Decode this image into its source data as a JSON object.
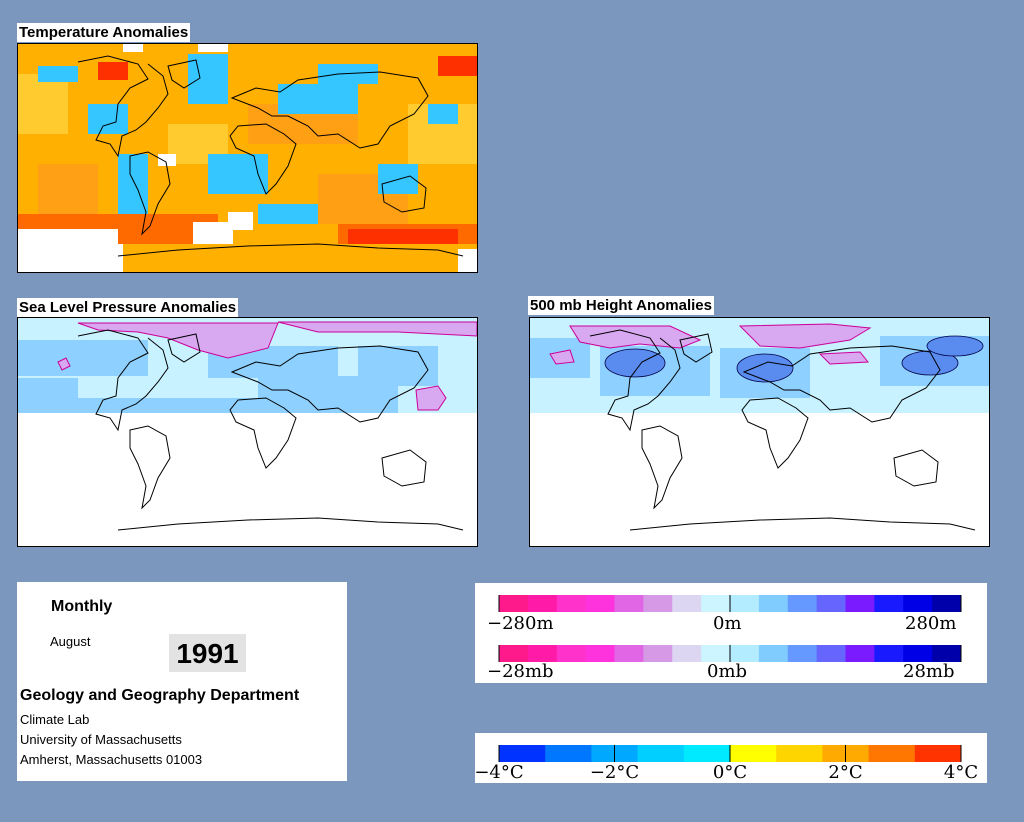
{
  "panels": {
    "temperature": {
      "title": "Temperature Anomalies"
    },
    "slp": {
      "title": "Sea Level Pressure Anomalies"
    },
    "height": {
      "title": "500 mb Height Anomalies"
    }
  },
  "info": {
    "mode": "Monthly",
    "month": "August",
    "year": "1991",
    "department": "Geology and Geography Department",
    "lab": "Climate Lab",
    "university": "University of Massachusetts",
    "address": "Amherst, Massachusetts 01003"
  },
  "legends": {
    "height": {
      "labels": [
        "−280m",
        "0m",
        "280m"
      ],
      "colors": [
        "#ff1a8c",
        "#ff1aa8",
        "#ff33cc",
        "#ff33dd",
        "#e066e6",
        "#d699e6",
        "#dcd6f2",
        "#cdf5ff",
        "#b3ecff",
        "#80ccff",
        "#6699ff",
        "#6666ff",
        "#7a1aff",
        "#1a1aff",
        "#0000e6",
        "#0000aa"
      ]
    },
    "pressure": {
      "labels": [
        "−28mb",
        "0mb",
        "28mb"
      ],
      "colors": [
        "#ff1a8c",
        "#ff1aa8",
        "#ff33cc",
        "#ff33dd",
        "#e066e6",
        "#d699e6",
        "#dcd6f2",
        "#cdf5ff",
        "#b3ecff",
        "#80ccff",
        "#6699ff",
        "#6666ff",
        "#7a1aff",
        "#1a1aff",
        "#0000e6",
        "#0000aa"
      ]
    },
    "temperature": {
      "labels": [
        "−4°C",
        "−2°C",
        "0°C",
        "2°C",
        "4°C"
      ],
      "colors": [
        "#0033ff",
        "#0077ff",
        "#00a8ff",
        "#00cfff",
        "#00eaff",
        "#ffff00",
        "#ffd500",
        "#ffaa00",
        "#ff7700",
        "#ff3300"
      ]
    }
  },
  "colors": {
    "background": "#7c97bd",
    "warm": "#ffb000",
    "cool": "#35c6ff",
    "pressure_positive": "#cfa0f0",
    "pressure_negative": "#8ed0ff"
  }
}
